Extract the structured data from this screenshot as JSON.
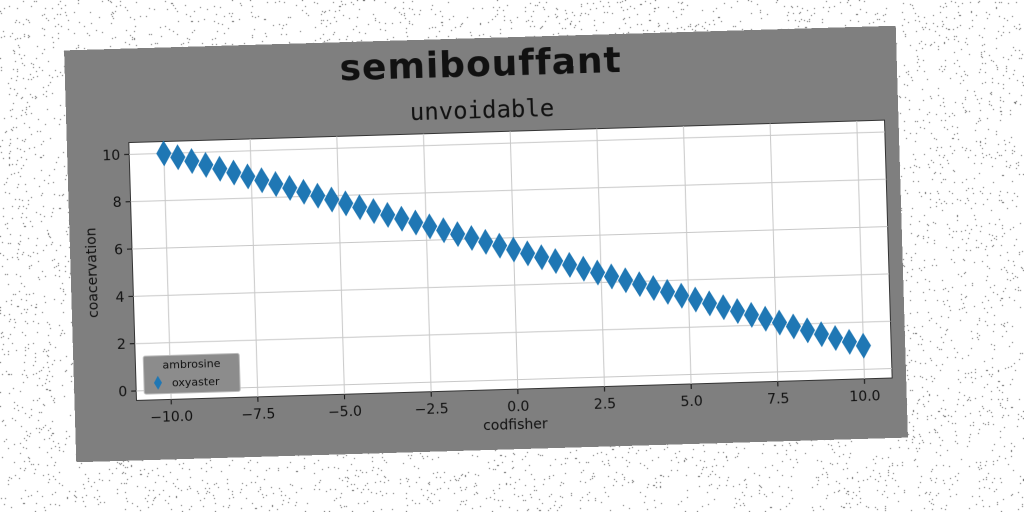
{
  "colors": {
    "figure_background": "#7f7f7f",
    "plot_background": "#ffffff",
    "grid": "#c8c8c8",
    "series": "#1f77b4",
    "legend_background": "#8c8c8c"
  },
  "chart_data": {
    "type": "scatter",
    "title": "semibouffant",
    "subtitle": "unvoidable",
    "xlabel": "codfisher",
    "ylabel": "coacervation",
    "xlim": [
      -11.0,
      10.8
    ],
    "ylim": [
      -0.4,
      10.5
    ],
    "xticks": [
      -10.0,
      -7.5,
      -5.0,
      -2.5,
      0.0,
      2.5,
      5.0,
      7.5,
      10.0
    ],
    "xtick_labels": [
      "−10.0",
      "−7.5",
      "−5.0",
      "−2.5",
      "0.0",
      "2.5",
      "5.0",
      "7.5",
      "10.0"
    ],
    "yticks": [
      0,
      2,
      4,
      6,
      8,
      10
    ],
    "ytick_labels": [
      "0",
      "2",
      "4",
      "6",
      "8",
      "10"
    ],
    "grid": true,
    "marker": "thin-diamond",
    "legend": {
      "title": "ambrosine",
      "placement": "lower-left",
      "entries": [
        "oxyaster"
      ]
    },
    "series": [
      {
        "name": "oxyaster",
        "x": [
          -10.0,
          -9.6,
          -9.2,
          -8.8,
          -8.4,
          -8.0,
          -7.6,
          -7.2,
          -6.8,
          -6.4,
          -6.0,
          -5.6,
          -5.2,
          -4.8,
          -4.4,
          -4.0,
          -3.6,
          -3.2,
          -2.8,
          -2.4,
          -2.0,
          -1.6,
          -1.2,
          -0.8,
          -0.4,
          0.0,
          0.4,
          0.8,
          1.2,
          1.6,
          2.0,
          2.4,
          2.8,
          3.2,
          3.6,
          4.0,
          4.4,
          4.8,
          5.2,
          5.6,
          6.0,
          6.4,
          6.8,
          7.2,
          7.6,
          8.0,
          8.4,
          8.8,
          9.2,
          9.6,
          10.0
        ],
        "y": [
          10.0,
          9.82,
          9.64,
          9.46,
          9.28,
          9.1,
          8.92,
          8.74,
          8.56,
          8.38,
          8.2,
          8.02,
          7.84,
          7.66,
          7.48,
          7.3,
          7.12,
          6.94,
          6.76,
          6.58,
          6.4,
          6.22,
          6.04,
          5.86,
          5.68,
          5.5,
          5.32,
          5.14,
          4.96,
          4.78,
          4.6,
          4.42,
          4.24,
          4.06,
          3.88,
          3.7,
          3.52,
          3.34,
          3.16,
          2.98,
          2.8,
          2.62,
          2.44,
          2.26,
          2.08,
          1.9,
          1.72,
          1.54,
          1.36,
          1.18,
          1.0
        ]
      }
    ]
  }
}
